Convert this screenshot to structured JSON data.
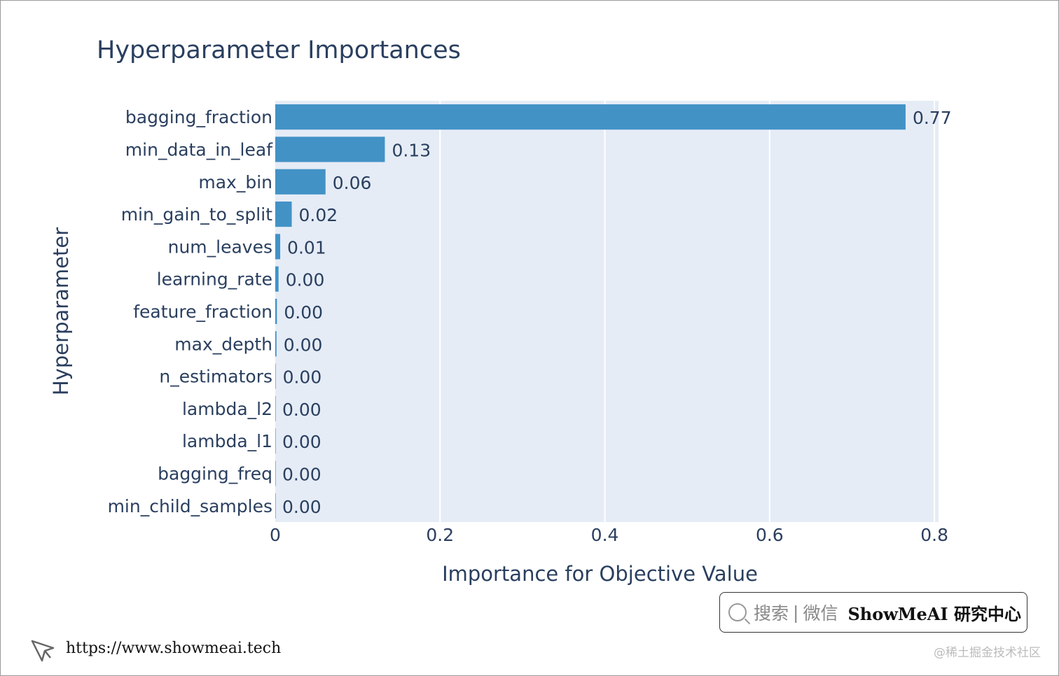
{
  "chart_data": {
    "type": "bar",
    "orientation": "horizontal",
    "title": "Hyperparameter Importances",
    "xlabel": "Importance for Objective Value",
    "ylabel": "Hyperparameter",
    "xlim": [
      0,
      0.805
    ],
    "xticks": [
      {
        "value": 0,
        "label": "0"
      },
      {
        "value": 0.2,
        "label": "0.2"
      },
      {
        "value": 0.4,
        "label": "0.4"
      },
      {
        "value": 0.6,
        "label": "0.6"
      },
      {
        "value": 0.8,
        "label": "0.8"
      }
    ],
    "categories": [
      "bagging_fraction",
      "min_data_in_leaf",
      "max_bin",
      "min_gain_to_split",
      "num_leaves",
      "learning_rate",
      "feature_fraction",
      "max_depth",
      "n_estimators",
      "lambda_l2",
      "lambda_l1",
      "bagging_freq",
      "min_child_samples"
    ],
    "values": [
      0.765,
      0.133,
      0.061,
      0.02,
      0.006,
      0.004,
      0.002,
      0.0015,
      0.0005,
      0.0,
      0.0,
      0.0,
      0.0
    ],
    "value_labels": [
      "0.77",
      "0.13",
      "0.06",
      "0.02",
      "0.01",
      "0.00",
      "0.00",
      "0.00",
      "0.00",
      "0.00",
      "0.00",
      "0.00",
      "0.00"
    ],
    "bar_color": "#4292c6",
    "plot_background": "#e5ecf6",
    "grid": true
  },
  "search": {
    "hint": "搜索",
    "separator": "|",
    "channel": "微信",
    "brand": "ShowMeAI 研究中心"
  },
  "footer": {
    "url": "https://www.showmeai.tech",
    "watermark": "@稀土掘金技术社区"
  },
  "icons": {
    "search": "search-icon",
    "cursor": "cursor-icon"
  }
}
